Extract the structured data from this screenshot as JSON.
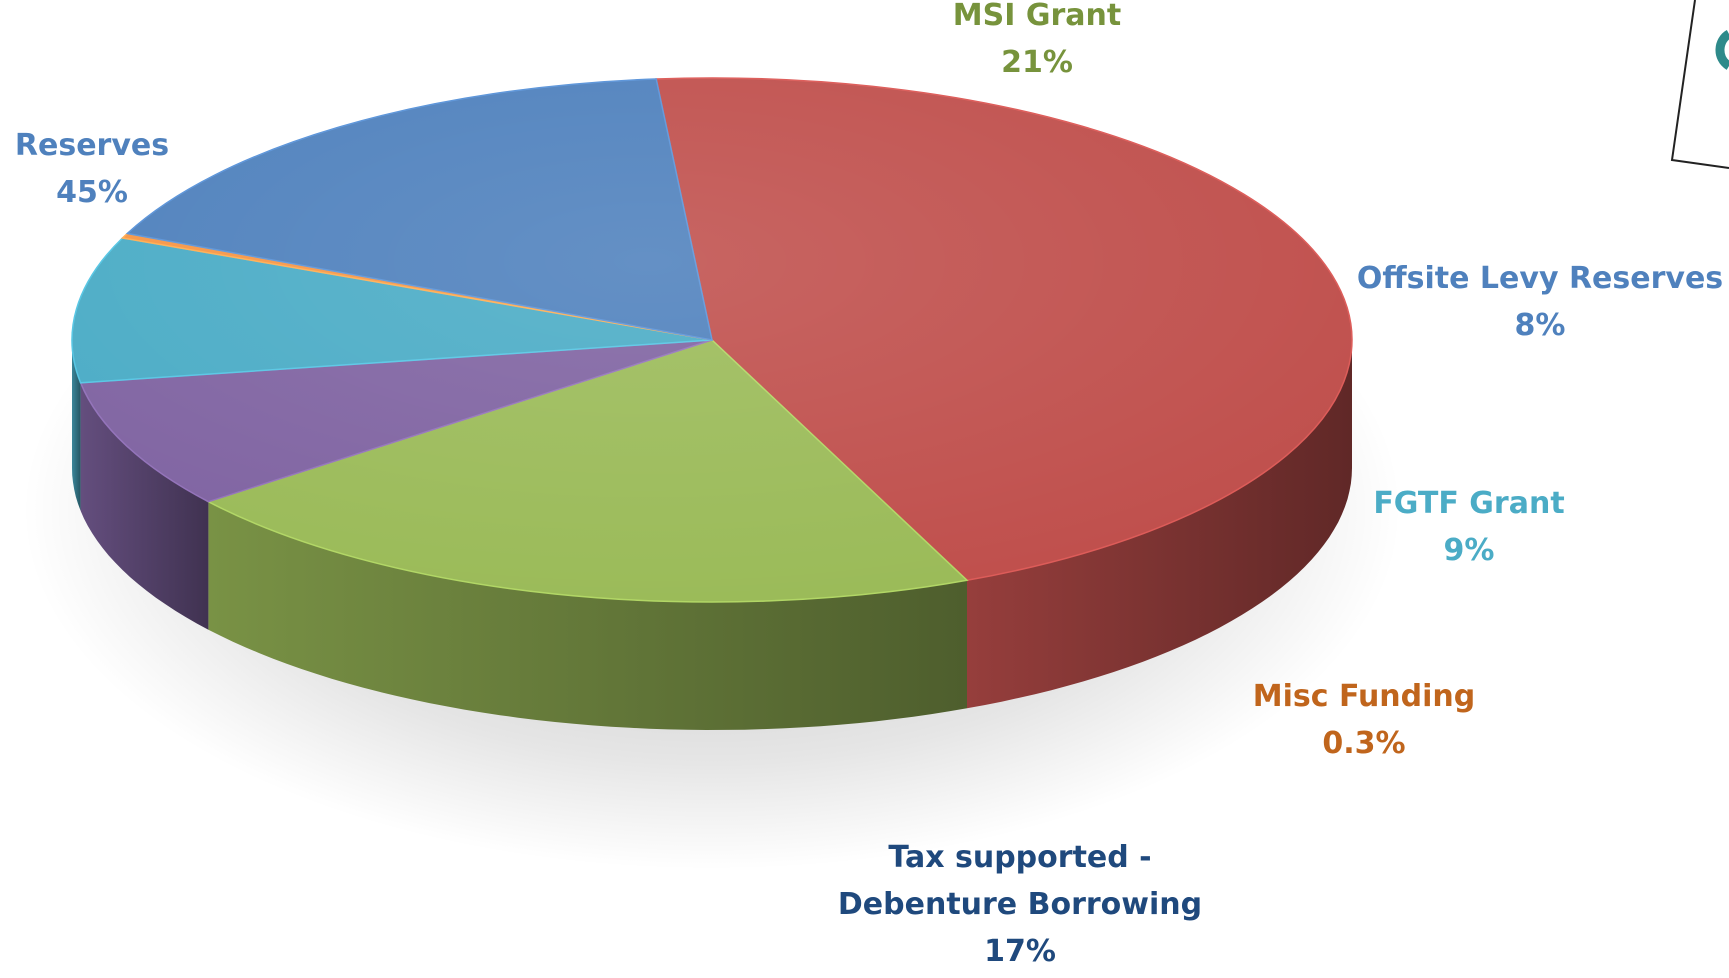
{
  "chart_data": {
    "type": "pie",
    "style": "3d-exploded-tilted",
    "title": "",
    "series": [
      {
        "values": [
          45,
          21,
          8,
          9,
          0.3,
          17
        ]
      }
    ],
    "slices": [
      {
        "label_lines": [
          "Reserves"
        ],
        "value": 45,
        "value_label": "45%",
        "color": "#c0504d",
        "label_color": "#4f81bd"
      },
      {
        "label_lines": [
          "MSI Grant"
        ],
        "value": 21,
        "value_label": "21%",
        "color": "#9bbb59",
        "label_color": "#77933c"
      },
      {
        "label_lines": [
          "Offsite Levy Reserves"
        ],
        "value": 8,
        "value_label": "8%",
        "color": "#8064a2",
        "label_color": "#4f81bd"
      },
      {
        "label_lines": [
          "FGTF Grant"
        ],
        "value": 9,
        "value_label": "9%",
        "color": "#4bacc6",
        "label_color": "#4bacc6"
      },
      {
        "label_lines": [
          "Misc Funding"
        ],
        "value": 0.3,
        "value_label": "0.3%",
        "color": "#f79646",
        "label_color": "#c0651c"
      },
      {
        "label_lines": [
          "Tax supported -",
          "Debenture Borrowing"
        ],
        "value": 17,
        "value_label": "17%",
        "color": "#4f81bd",
        "label_color": "#1f497d"
      }
    ],
    "legend": "none"
  }
}
